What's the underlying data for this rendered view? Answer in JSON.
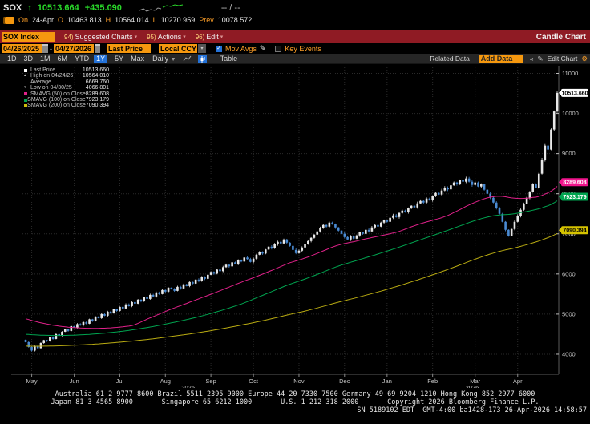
{
  "quote": {
    "ticker": "SOX",
    "direction_arrow": "↑",
    "last": "10513.664",
    "change": "+435.090",
    "bid_ask": "-- / --",
    "session_label": "On",
    "session_date": "24-Apr",
    "open_label": "O",
    "open": "10463.813",
    "high_label": "H",
    "high": "10564.014",
    "low_label": "L",
    "low": "10270.959",
    "prev_label": "Prev",
    "prev": "10078.572"
  },
  "menubar": {
    "security": "SOX Index",
    "items": [
      {
        "num": "94)",
        "label": "Suggested Charts"
      },
      {
        "num": "95)",
        "label": "Actions"
      },
      {
        "num": "96)",
        "label": "Edit"
      }
    ],
    "right_title": "Candle Chart"
  },
  "controls": {
    "date_from": "04/26/2025",
    "date_sep": "-",
    "date_to": "04/27/2026",
    "price_mode": "Last Price",
    "currency": "Local CCY",
    "mov_avgs_label": "Mov Avgs",
    "mov_avgs_checked": "✓",
    "key_events_label": "Key Events"
  },
  "toolbar": {
    "periods": [
      "1D",
      "3D",
      "1M",
      "6M",
      "YTD",
      "1Y",
      "5Y",
      "Max"
    ],
    "active_period": "1Y",
    "frequency": "Daily",
    "table_label": "Table",
    "related_data_label": "+ Related Data",
    "add_data_placeholder": "Add Data",
    "collapse_glyph": "«",
    "edit_chart_label": "Edit Chart"
  },
  "legend": {
    "rows": [
      {
        "marker": "square",
        "color": "#ffffff",
        "label": "Last Price",
        "value": "10513.660"
      },
      {
        "marker": "up",
        "color": "#b0b0b0",
        "label": "High on 04/24/26",
        "value": "10564.010"
      },
      {
        "marker": "none",
        "color": "#b0b0b0",
        "label": "Average",
        "value": "6669.760"
      },
      {
        "marker": "down",
        "color": "#b0b0b0",
        "label": "Low on 04/30/25",
        "value": "4066.801"
      },
      {
        "marker": "square",
        "color": "#e0218a",
        "label": "SMAVG (50) on Close",
        "value": "8289.608"
      },
      {
        "marker": "square",
        "color": "#00a550",
        "label": "SMAVG (100) on Close",
        "value": "7923.179"
      },
      {
        "marker": "square",
        "color": "#cdbc0a",
        "label": "SMAVG (200) on Close",
        "value": "7090.394"
      }
    ]
  },
  "chart_data": {
    "type": "candlestick",
    "title": "SOX Index — Candle Chart, 1Y Daily, 04/26/2025 - 04/27/2026",
    "ylim": [
      3500,
      11150
    ],
    "y_ticks": [
      4000,
      5000,
      6000,
      7000,
      8000,
      9000,
      10000,
      11000
    ],
    "grid": "dotted",
    "first_open": 4360,
    "closes": [
      4300,
      4180,
      4090,
      4200,
      4150,
      4280,
      4350,
      4320,
      4420,
      4380,
      4500,
      4460,
      4560,
      4620,
      4580,
      4700,
      4660,
      4750,
      4720,
      4800,
      4760,
      4870,
      4830,
      4940,
      4900,
      5000,
      4960,
      5060,
      5020,
      5120,
      5080,
      5180,
      5140,
      5240,
      5200,
      5300,
      5260,
      5360,
      5320,
      5420,
      5380,
      5480,
      5440,
      5540,
      5500,
      5600,
      5560,
      5660,
      5620,
      5580,
      5680,
      5640,
      5740,
      5700,
      5800,
      5760,
      5860,
      5820,
      5920,
      5880,
      5980,
      6050,
      6010,
      6110,
      6070,
      6170,
      6230,
      6190,
      6290,
      6250,
      6350,
      6310,
      6410,
      6370,
      6300,
      6380,
      6480,
      6550,
      6510,
      6610,
      6680,
      6640,
      6740,
      6800,
      6760,
      6860,
      6780,
      6700,
      6600,
      6520,
      6580,
      6660,
      6740,
      6820,
      6900,
      6980,
      7060,
      7140,
      7220,
      7180,
      7280,
      7240,
      7160,
      7080,
      7000,
      6920,
      6860,
      6940,
      6880,
      6960,
      7040,
      7000,
      7100,
      7060,
      7160,
      7220,
      7180,
      7280,
      7340,
      7300,
      7400,
      7460,
      7420,
      7520,
      7580,
      7540,
      7640,
      7700,
      7660,
      7760,
      7820,
      7780,
      7880,
      7840,
      7940,
      8020,
      7980,
      8080,
      8150,
      8110,
      8210,
      8280,
      8240,
      8340,
      8300,
      8380,
      8300,
      8220,
      8280,
      8180,
      8240,
      8100,
      8000,
      7900,
      7780,
      7650,
      7500,
      7300,
      7100,
      6950,
      7120,
      7300,
      7450,
      7600,
      7750,
      7900,
      8050,
      8250,
      8150,
      8500,
      8850,
      9200,
      9100,
      9600,
      10050,
      10513.66
    ],
    "annotations": {
      "high": {
        "i": 175,
        "value": 10564.014
      },
      "low": {
        "i": 2,
        "value": 4066.801
      }
    },
    "months": [
      {
        "label": "May",
        "i": 2
      },
      {
        "label": "Jun",
        "i": 16
      },
      {
        "label": "Jul",
        "i": 31
      },
      {
        "label": "Aug",
        "i": 46
      },
      {
        "label": "Sep",
        "i": 61
      },
      {
        "label": "Oct",
        "i": 75
      },
      {
        "label": "Nov",
        "i": 90
      },
      {
        "label": "Dec",
        "i": 105
      },
      {
        "label": "Jan",
        "i": 119
      },
      {
        "label": "Feb",
        "i": 134
      },
      {
        "label": "Mar",
        "i": 148
      },
      {
        "label": "Apr",
        "i": 162
      }
    ],
    "years": [
      {
        "label": "2025",
        "from_i": 2,
        "to_i": 105
      },
      {
        "label": "2026",
        "from_i": 119,
        "to_i": 175
      }
    ],
    "overlays": [
      {
        "name": "SMAVG (50) on Close",
        "color": "#e0218a",
        "window": 36,
        "seed": 4900,
        "end_value": 8289.608
      },
      {
        "name": "SMAVG (100) on Close",
        "color": "#00a550",
        "window": 72,
        "seed": 4500,
        "end_value": 7923.179
      },
      {
        "name": "SMAVG (200) on Close",
        "color": "#b9ab12",
        "window": 144,
        "seed": 4200,
        "end_value": 7090.394
      }
    ],
    "price_tags": [
      {
        "value": 10513.66,
        "label": "10513.660",
        "bg": "#ffffff",
        "fg": "#000000"
      },
      {
        "value": 8289.608,
        "label": "8289.608",
        "bg": "#f0148c",
        "fg": "#ffffff"
      },
      {
        "value": 7923.179,
        "label": "7923.179",
        "bg": "#00a550",
        "fg": "#ffffff"
      },
      {
        "value": 7090.394,
        "label": "7090.394",
        "bg": "#d6c300",
        "fg": "#000000"
      }
    ],
    "colors": {
      "up": "#e8e8e8",
      "down": "#4a8bd4",
      "grid": "#2a2a2a",
      "axis_line": "#5a5a5a",
      "axis_text": "#c8c8c8"
    }
  },
  "footer": {
    "line1": "Australia 61 2 9777 8600 Brazil 5511 2395 9000 Europe 44 20 7330 7500 Germany 49 69 9204 1210 Hong Kong 852 2977 6000",
    "line2": "Japan 81 3 4565 8900       Singapore 65 6212 1000       U.S. 1 212 318 2000       Copyright 2026 Bloomberg Finance L.P.",
    "line3": "SN 5189102 EDT  GMT-4:00 ba1428-173 26-Apr-2026 14:58:57"
  }
}
